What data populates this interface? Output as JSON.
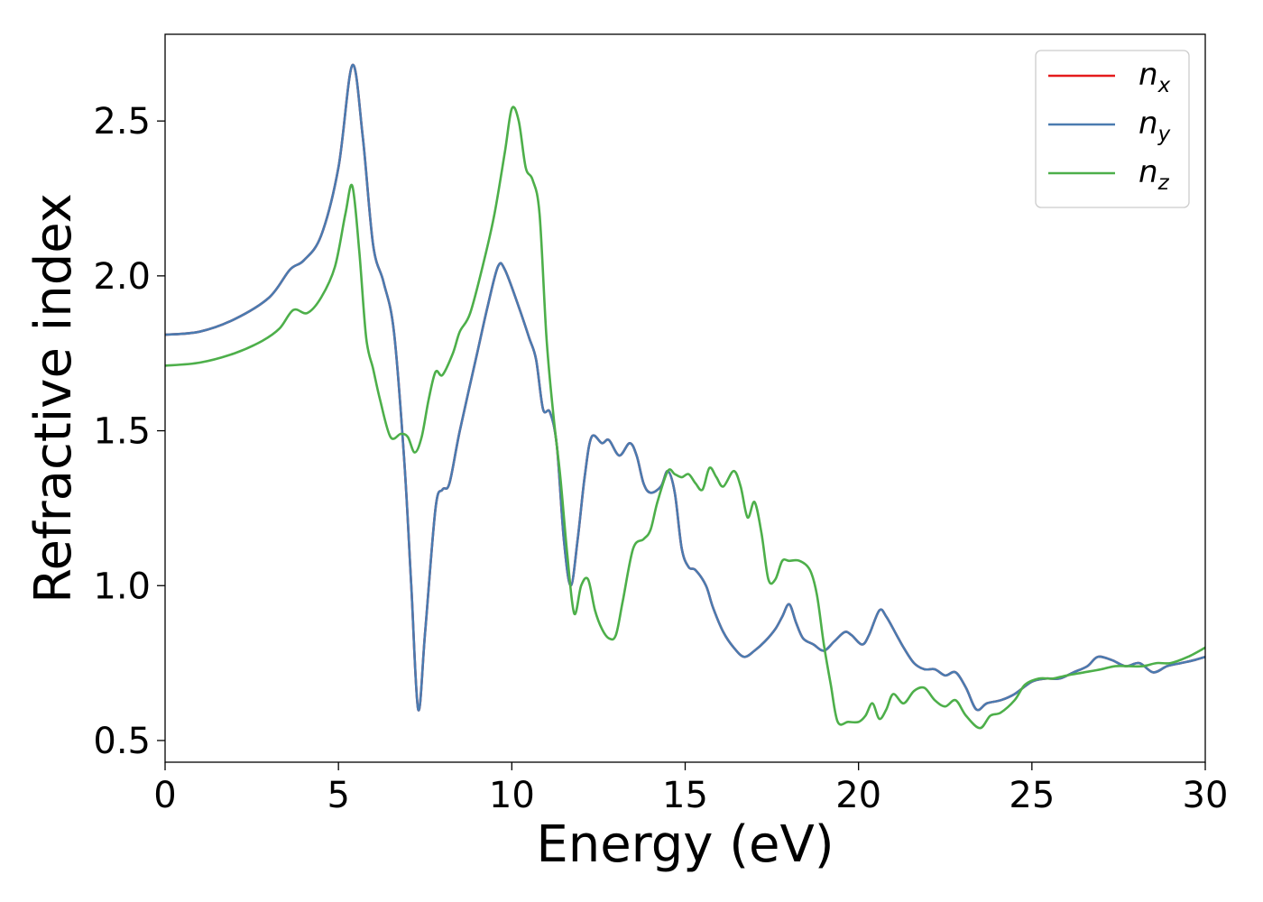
{
  "chart_data": {
    "type": "line",
    "title": "",
    "xlabel": "Energy (eV)",
    "ylabel": "Refractive index",
    "xlim": [
      0,
      30
    ],
    "ylim": [
      0.43,
      2.78
    ],
    "xticks": [
      0,
      5,
      10,
      15,
      20,
      25,
      30
    ],
    "xtick_labels": [
      "0",
      "5",
      "10",
      "15",
      "20",
      "25",
      "30"
    ],
    "yticks": [
      0.5,
      1.0,
      1.5,
      2.0,
      2.5
    ],
    "ytick_labels": [
      "0.5",
      "1.0",
      "1.5",
      "2.0",
      "2.5"
    ],
    "grid": false,
    "legend_position": "top-right",
    "series": [
      {
        "name": "n",
        "subscript": "x",
        "color": "#e41a1c",
        "points": [
          [
            0,
            1.81
          ],
          [
            1,
            1.82
          ],
          [
            2,
            1.86
          ],
          [
            3,
            1.93
          ],
          [
            3.6,
            2.02
          ],
          [
            4,
            2.05
          ],
          [
            4.5,
            2.13
          ],
          [
            5,
            2.35
          ],
          [
            5.4,
            2.68
          ],
          [
            5.7,
            2.45
          ],
          [
            6,
            2.1
          ],
          [
            6.3,
            1.98
          ],
          [
            6.6,
            1.82
          ],
          [
            6.9,
            1.4
          ],
          [
            7.1,
            1.0
          ],
          [
            7.3,
            0.6
          ],
          [
            7.5,
            0.85
          ],
          [
            7.8,
            1.25
          ],
          [
            8,
            1.31
          ],
          [
            8.2,
            1.33
          ],
          [
            8.5,
            1.5
          ],
          [
            9,
            1.75
          ],
          [
            9.3,
            1.9
          ],
          [
            9.6,
            2.03
          ],
          [
            9.8,
            2.02
          ],
          [
            10.2,
            1.9
          ],
          [
            10.5,
            1.8
          ],
          [
            10.7,
            1.73
          ],
          [
            10.9,
            1.57
          ],
          [
            11.1,
            1.56
          ],
          [
            11.3,
            1.45
          ],
          [
            11.5,
            1.15
          ],
          [
            11.7,
            1.0
          ],
          [
            11.9,
            1.15
          ],
          [
            12.1,
            1.35
          ],
          [
            12.3,
            1.48
          ],
          [
            12.6,
            1.46
          ],
          [
            12.8,
            1.47
          ],
          [
            13.1,
            1.42
          ],
          [
            13.4,
            1.46
          ],
          [
            13.6,
            1.42
          ],
          [
            13.8,
            1.33
          ],
          [
            14,
            1.3
          ],
          [
            14.3,
            1.32
          ],
          [
            14.5,
            1.37
          ],
          [
            14.7,
            1.3
          ],
          [
            14.9,
            1.12
          ],
          [
            15.1,
            1.06
          ],
          [
            15.3,
            1.05
          ],
          [
            15.6,
            1.0
          ],
          [
            15.8,
            0.93
          ],
          [
            16.1,
            0.85
          ],
          [
            16.4,
            0.8
          ],
          [
            16.7,
            0.77
          ],
          [
            17,
            0.79
          ],
          [
            17.3,
            0.82
          ],
          [
            17.6,
            0.86
          ],
          [
            17.8,
            0.9
          ],
          [
            18,
            0.94
          ],
          [
            18.2,
            0.88
          ],
          [
            18.4,
            0.83
          ],
          [
            18.7,
            0.81
          ],
          [
            19,
            0.79
          ],
          [
            19.3,
            0.82
          ],
          [
            19.6,
            0.85
          ],
          [
            19.8,
            0.84
          ],
          [
            20.1,
            0.81
          ],
          [
            20.3,
            0.84
          ],
          [
            20.6,
            0.92
          ],
          [
            20.8,
            0.9
          ],
          [
            21.1,
            0.84
          ],
          [
            21.3,
            0.8
          ],
          [
            21.6,
            0.75
          ],
          [
            21.9,
            0.73
          ],
          [
            22.2,
            0.73
          ],
          [
            22.5,
            0.71
          ],
          [
            22.8,
            0.72
          ],
          [
            23.1,
            0.67
          ],
          [
            23.4,
            0.6
          ],
          [
            23.7,
            0.62
          ],
          [
            24.1,
            0.63
          ],
          [
            24.5,
            0.65
          ],
          [
            25,
            0.69
          ],
          [
            25.4,
            0.7
          ],
          [
            25.8,
            0.7
          ],
          [
            26.2,
            0.72
          ],
          [
            26.6,
            0.74
          ],
          [
            26.9,
            0.77
          ],
          [
            27.3,
            0.76
          ],
          [
            27.7,
            0.74
          ],
          [
            28.1,
            0.75
          ],
          [
            28.5,
            0.72
          ],
          [
            28.9,
            0.74
          ],
          [
            29.3,
            0.75
          ],
          [
            29.7,
            0.76
          ],
          [
            30,
            0.77
          ]
        ]
      },
      {
        "name": "n",
        "subscript": "y",
        "color": "#4a7bb0",
        "points": [
          [
            0,
            1.81
          ],
          [
            1,
            1.82
          ],
          [
            2,
            1.86
          ],
          [
            3,
            1.93
          ],
          [
            3.6,
            2.02
          ],
          [
            4,
            2.05
          ],
          [
            4.5,
            2.13
          ],
          [
            5,
            2.35
          ],
          [
            5.4,
            2.68
          ],
          [
            5.7,
            2.45
          ],
          [
            6,
            2.1
          ],
          [
            6.3,
            1.98
          ],
          [
            6.6,
            1.82
          ],
          [
            6.9,
            1.4
          ],
          [
            7.1,
            1.0
          ],
          [
            7.3,
            0.6
          ],
          [
            7.5,
            0.85
          ],
          [
            7.8,
            1.25
          ],
          [
            8,
            1.31
          ],
          [
            8.2,
            1.33
          ],
          [
            8.5,
            1.5
          ],
          [
            9,
            1.75
          ],
          [
            9.3,
            1.9
          ],
          [
            9.6,
            2.03
          ],
          [
            9.8,
            2.02
          ],
          [
            10.2,
            1.9
          ],
          [
            10.5,
            1.8
          ],
          [
            10.7,
            1.73
          ],
          [
            10.9,
            1.57
          ],
          [
            11.1,
            1.56
          ],
          [
            11.3,
            1.45
          ],
          [
            11.5,
            1.15
          ],
          [
            11.7,
            1.0
          ],
          [
            11.9,
            1.15
          ],
          [
            12.1,
            1.35
          ],
          [
            12.3,
            1.48
          ],
          [
            12.6,
            1.46
          ],
          [
            12.8,
            1.47
          ],
          [
            13.1,
            1.42
          ],
          [
            13.4,
            1.46
          ],
          [
            13.6,
            1.42
          ],
          [
            13.8,
            1.33
          ],
          [
            14,
            1.3
          ],
          [
            14.3,
            1.32
          ],
          [
            14.5,
            1.37
          ],
          [
            14.7,
            1.3
          ],
          [
            14.9,
            1.12
          ],
          [
            15.1,
            1.06
          ],
          [
            15.3,
            1.05
          ],
          [
            15.6,
            1.0
          ],
          [
            15.8,
            0.93
          ],
          [
            16.1,
            0.85
          ],
          [
            16.4,
            0.8
          ],
          [
            16.7,
            0.77
          ],
          [
            17,
            0.79
          ],
          [
            17.3,
            0.82
          ],
          [
            17.6,
            0.86
          ],
          [
            17.8,
            0.9
          ],
          [
            18,
            0.94
          ],
          [
            18.2,
            0.88
          ],
          [
            18.4,
            0.83
          ],
          [
            18.7,
            0.81
          ],
          [
            19,
            0.79
          ],
          [
            19.3,
            0.82
          ],
          [
            19.6,
            0.85
          ],
          [
            19.8,
            0.84
          ],
          [
            20.1,
            0.81
          ],
          [
            20.3,
            0.84
          ],
          [
            20.6,
            0.92
          ],
          [
            20.8,
            0.9
          ],
          [
            21.1,
            0.84
          ],
          [
            21.3,
            0.8
          ],
          [
            21.6,
            0.75
          ],
          [
            21.9,
            0.73
          ],
          [
            22.2,
            0.73
          ],
          [
            22.5,
            0.71
          ],
          [
            22.8,
            0.72
          ],
          [
            23.1,
            0.67
          ],
          [
            23.4,
            0.6
          ],
          [
            23.7,
            0.62
          ],
          [
            24.1,
            0.63
          ],
          [
            24.5,
            0.65
          ],
          [
            25,
            0.69
          ],
          [
            25.4,
            0.7
          ],
          [
            25.8,
            0.7
          ],
          [
            26.2,
            0.72
          ],
          [
            26.6,
            0.74
          ],
          [
            26.9,
            0.77
          ],
          [
            27.3,
            0.76
          ],
          [
            27.7,
            0.74
          ],
          [
            28.1,
            0.75
          ],
          [
            28.5,
            0.72
          ],
          [
            28.9,
            0.74
          ],
          [
            29.3,
            0.75
          ],
          [
            29.7,
            0.76
          ],
          [
            30,
            0.77
          ]
        ]
      },
      {
        "name": "n",
        "subscript": "z",
        "color": "#4daf4a",
        "points": [
          [
            0,
            1.71
          ],
          [
            1,
            1.72
          ],
          [
            2,
            1.75
          ],
          [
            2.8,
            1.79
          ],
          [
            3.3,
            1.83
          ],
          [
            3.7,
            1.89
          ],
          [
            4.1,
            1.88
          ],
          [
            4.5,
            1.93
          ],
          [
            4.9,
            2.03
          ],
          [
            5.2,
            2.2
          ],
          [
            5.4,
            2.29
          ],
          [
            5.6,
            2.08
          ],
          [
            5.8,
            1.8
          ],
          [
            6,
            1.7
          ],
          [
            6.2,
            1.6
          ],
          [
            6.5,
            1.48
          ],
          [
            6.8,
            1.49
          ],
          [
            7,
            1.48
          ],
          [
            7.2,
            1.43
          ],
          [
            7.4,
            1.48
          ],
          [
            7.6,
            1.6
          ],
          [
            7.8,
            1.69
          ],
          [
            8,
            1.68
          ],
          [
            8.3,
            1.75
          ],
          [
            8.5,
            1.82
          ],
          [
            8.8,
            1.88
          ],
          [
            9.2,
            2.05
          ],
          [
            9.5,
            2.2
          ],
          [
            9.8,
            2.4
          ],
          [
            10,
            2.54
          ],
          [
            10.2,
            2.5
          ],
          [
            10.4,
            2.35
          ],
          [
            10.6,
            2.31
          ],
          [
            10.8,
            2.2
          ],
          [
            11,
            1.8
          ],
          [
            11.2,
            1.55
          ],
          [
            11.4,
            1.35
          ],
          [
            11.6,
            1.1
          ],
          [
            11.8,
            0.91
          ],
          [
            12,
            1.0
          ],
          [
            12.2,
            1.02
          ],
          [
            12.4,
            0.92
          ],
          [
            12.6,
            0.86
          ],
          [
            12.8,
            0.83
          ],
          [
            13,
            0.84
          ],
          [
            13.2,
            0.95
          ],
          [
            13.5,
            1.12
          ],
          [
            13.8,
            1.15
          ],
          [
            14,
            1.18
          ],
          [
            14.2,
            1.27
          ],
          [
            14.5,
            1.37
          ],
          [
            14.7,
            1.36
          ],
          [
            14.9,
            1.35
          ],
          [
            15.1,
            1.36
          ],
          [
            15.3,
            1.33
          ],
          [
            15.5,
            1.31
          ],
          [
            15.7,
            1.38
          ],
          [
            15.9,
            1.35
          ],
          [
            16.1,
            1.32
          ],
          [
            16.4,
            1.37
          ],
          [
            16.6,
            1.32
          ],
          [
            16.8,
            1.22
          ],
          [
            17,
            1.27
          ],
          [
            17.2,
            1.17
          ],
          [
            17.4,
            1.02
          ],
          [
            17.6,
            1.02
          ],
          [
            17.8,
            1.08
          ],
          [
            18,
            1.08
          ],
          [
            18.3,
            1.08
          ],
          [
            18.6,
            1.05
          ],
          [
            18.8,
            0.97
          ],
          [
            19,
            0.81
          ],
          [
            19.2,
            0.68
          ],
          [
            19.4,
            0.56
          ],
          [
            19.7,
            0.56
          ],
          [
            20,
            0.56
          ],
          [
            20.2,
            0.58
          ],
          [
            20.4,
            0.62
          ],
          [
            20.6,
            0.57
          ],
          [
            20.8,
            0.6
          ],
          [
            21,
            0.65
          ],
          [
            21.3,
            0.62
          ],
          [
            21.6,
            0.66
          ],
          [
            21.9,
            0.67
          ],
          [
            22.2,
            0.63
          ],
          [
            22.5,
            0.61
          ],
          [
            22.8,
            0.63
          ],
          [
            23.1,
            0.58
          ],
          [
            23.5,
            0.54
          ],
          [
            23.8,
            0.58
          ],
          [
            24.1,
            0.59
          ],
          [
            24.5,
            0.63
          ],
          [
            24.8,
            0.68
          ],
          [
            25.2,
            0.7
          ],
          [
            25.6,
            0.7
          ],
          [
            26,
            0.71
          ],
          [
            26.5,
            0.72
          ],
          [
            27,
            0.73
          ],
          [
            27.4,
            0.74
          ],
          [
            27.8,
            0.74
          ],
          [
            28.2,
            0.74
          ],
          [
            28.6,
            0.75
          ],
          [
            29,
            0.75
          ],
          [
            29.5,
            0.77
          ],
          [
            30,
            0.8
          ]
        ]
      }
    ]
  }
}
